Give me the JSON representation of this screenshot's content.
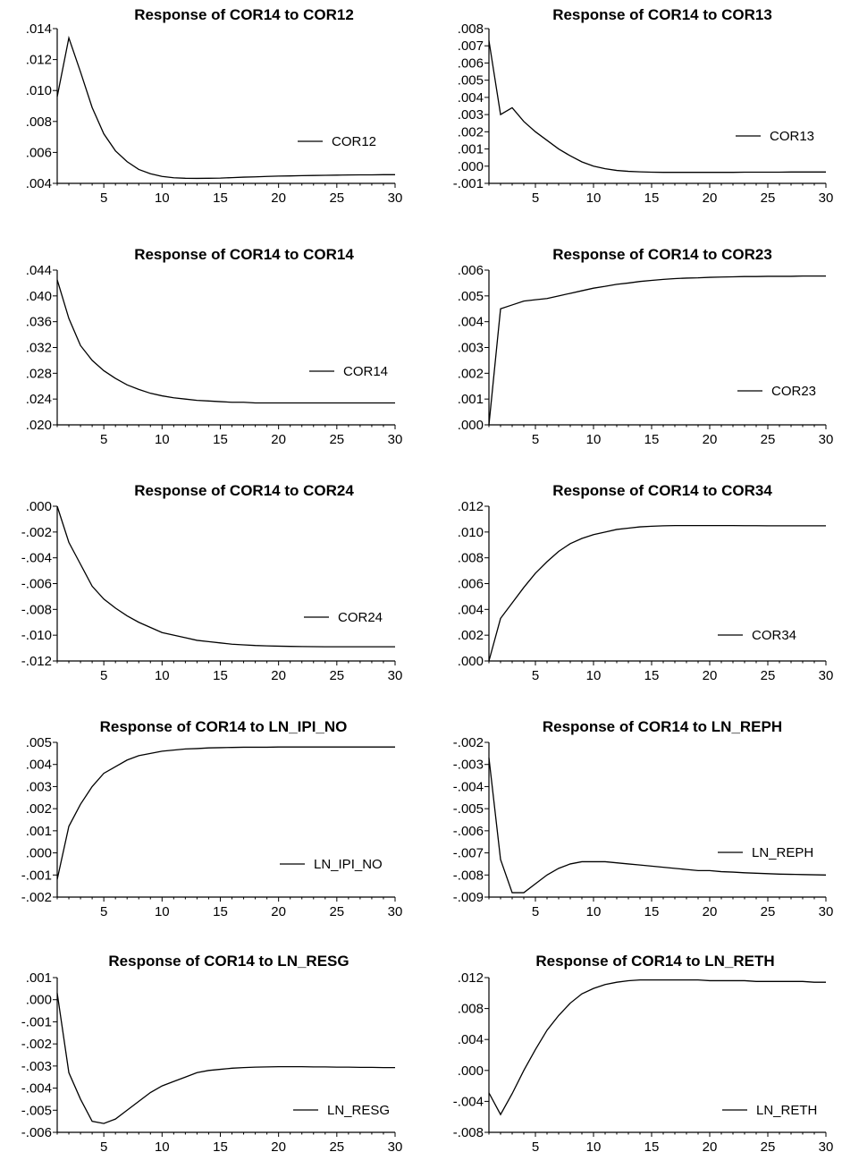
{
  "chart_data": [
    {
      "type": "line",
      "title": "Response of COR14 to COR12",
      "x": [
        1,
        2,
        3,
        4,
        5,
        6,
        7,
        8,
        9,
        10,
        11,
        12,
        13,
        14,
        15,
        16,
        17,
        18,
        19,
        20,
        21,
        22,
        23,
        24,
        25,
        26,
        27,
        28,
        29,
        30
      ],
      "xticks": [
        5,
        10,
        15,
        20,
        25,
        30
      ],
      "xlim": [
        1,
        30
      ],
      "ylim": [
        0.004,
        0.014
      ],
      "yticks": [
        {
          "v": 0.004,
          "label": ".004"
        },
        {
          "v": 0.006,
          "label": ".006"
        },
        {
          "v": 0.008,
          "label": ".008"
        },
        {
          "v": 0.01,
          "label": ".010"
        },
        {
          "v": 0.012,
          "label": ".012"
        },
        {
          "v": 0.014,
          "label": ".014"
        }
      ],
      "series": [
        {
          "name": "COR12",
          "values": [
            0.0096,
            0.0134,
            0.0112,
            0.0089,
            0.0072,
            0.0061,
            0.0054,
            0.0049,
            0.00462,
            0.00445,
            0.00436,
            0.00433,
            0.00432,
            0.00433,
            0.00434,
            0.00437,
            0.0044,
            0.00442,
            0.00445,
            0.00447,
            0.00448,
            0.0045,
            0.00451,
            0.00452,
            0.00453,
            0.00454,
            0.00455,
            0.00455,
            0.00456,
            0.00456
          ]
        }
      ]
    },
    {
      "type": "line",
      "title": "Response of COR14 to COR13",
      "x": [
        1,
        2,
        3,
        4,
        5,
        6,
        7,
        8,
        9,
        10,
        11,
        12,
        13,
        14,
        15,
        16,
        17,
        18,
        19,
        20,
        21,
        22,
        23,
        24,
        25,
        26,
        27,
        28,
        29,
        30
      ],
      "xticks": [
        5,
        10,
        15,
        20,
        25,
        30
      ],
      "xlim": [
        1,
        30
      ],
      "ylim": [
        -0.001,
        0.008
      ],
      "yticks": [
        {
          "v": -0.001,
          "label": "-.001"
        },
        {
          "v": 0.0,
          "label": ".000"
        },
        {
          "v": 0.001,
          "label": ".001"
        },
        {
          "v": 0.002,
          "label": ".002"
        },
        {
          "v": 0.003,
          "label": ".003"
        },
        {
          "v": 0.004,
          "label": ".004"
        },
        {
          "v": 0.005,
          "label": ".005"
        },
        {
          "v": 0.006,
          "label": ".006"
        },
        {
          "v": 0.007,
          "label": ".007"
        },
        {
          "v": 0.008,
          "label": ".008"
        }
      ],
      "series": [
        {
          "name": "COR13",
          "values": [
            0.0073,
            0.003,
            0.0034,
            0.0026,
            0.002,
            0.0015,
            0.001,
            0.0006,
            0.00025,
            0.0,
            -0.00015,
            -0.00025,
            -0.0003,
            -0.00033,
            -0.00035,
            -0.00036,
            -0.00036,
            -0.00036,
            -0.00036,
            -0.00036,
            -0.00036,
            -0.00036,
            -0.00035,
            -0.00035,
            -0.00035,
            -0.00035,
            -0.00034,
            -0.00034,
            -0.00034,
            -0.00034
          ]
        }
      ]
    },
    {
      "type": "line",
      "title": "Response of COR14 to COR14",
      "x": [
        1,
        2,
        3,
        4,
        5,
        6,
        7,
        8,
        9,
        10,
        11,
        12,
        13,
        14,
        15,
        16,
        17,
        18,
        19,
        20,
        21,
        22,
        23,
        24,
        25,
        26,
        27,
        28,
        29,
        30
      ],
      "xticks": [
        5,
        10,
        15,
        20,
        25,
        30
      ],
      "xlim": [
        1,
        30
      ],
      "ylim": [
        0.02,
        0.044
      ],
      "yticks": [
        {
          "v": 0.02,
          "label": ".020"
        },
        {
          "v": 0.024,
          "label": ".024"
        },
        {
          "v": 0.028,
          "label": ".028"
        },
        {
          "v": 0.032,
          "label": ".032"
        },
        {
          "v": 0.036,
          "label": ".036"
        },
        {
          "v": 0.04,
          "label": ".040"
        },
        {
          "v": 0.044,
          "label": ".044"
        }
      ],
      "series": [
        {
          "name": "COR14",
          "values": [
            0.0425,
            0.0365,
            0.0323,
            0.03,
            0.0284,
            0.0272,
            0.0262,
            0.0255,
            0.0249,
            0.0245,
            0.0242,
            0.024,
            0.0238,
            0.0237,
            0.0236,
            0.0235,
            0.0235,
            0.0234,
            0.0234,
            0.0234,
            0.0234,
            0.0234,
            0.0234,
            0.0234,
            0.0234,
            0.0234,
            0.0234,
            0.0234,
            0.0234,
            0.0234
          ]
        }
      ]
    },
    {
      "type": "line",
      "title": "Response of COR14 to COR23",
      "x": [
        1,
        2,
        3,
        4,
        5,
        6,
        7,
        8,
        9,
        10,
        11,
        12,
        13,
        14,
        15,
        16,
        17,
        18,
        19,
        20,
        21,
        22,
        23,
        24,
        25,
        26,
        27,
        28,
        29,
        30
      ],
      "xticks": [
        5,
        10,
        15,
        20,
        25,
        30
      ],
      "xlim": [
        1,
        30
      ],
      "ylim": [
        0.0,
        0.006
      ],
      "yticks": [
        {
          "v": 0.0,
          "label": ".000"
        },
        {
          "v": 0.001,
          "label": ".001"
        },
        {
          "v": 0.002,
          "label": ".002"
        },
        {
          "v": 0.003,
          "label": ".003"
        },
        {
          "v": 0.004,
          "label": ".004"
        },
        {
          "v": 0.005,
          "label": ".005"
        },
        {
          "v": 0.006,
          "label": ".006"
        }
      ],
      "series": [
        {
          "name": "COR23",
          "values": [
            0.0,
            0.0045,
            0.00465,
            0.0048,
            0.00485,
            0.0049,
            0.005,
            0.0051,
            0.0052,
            0.0053,
            0.00537,
            0.00545,
            0.0055,
            0.00556,
            0.0056,
            0.00564,
            0.00567,
            0.00569,
            0.0057,
            0.00572,
            0.00573,
            0.00574,
            0.00575,
            0.00575,
            0.00576,
            0.00576,
            0.00576,
            0.00577,
            0.00577,
            0.00577
          ]
        }
      ]
    },
    {
      "type": "line",
      "title": "Response of COR14 to COR24",
      "x": [
        1,
        2,
        3,
        4,
        5,
        6,
        7,
        8,
        9,
        10,
        11,
        12,
        13,
        14,
        15,
        16,
        17,
        18,
        19,
        20,
        21,
        22,
        23,
        24,
        25,
        26,
        27,
        28,
        29,
        30
      ],
      "xticks": [
        5,
        10,
        15,
        20,
        25,
        30
      ],
      "xlim": [
        1,
        30
      ],
      "ylim": [
        -0.012,
        0.0
      ],
      "yticks": [
        {
          "v": -0.012,
          "label": "-.012"
        },
        {
          "v": -0.01,
          "label": "-.010"
        },
        {
          "v": -0.008,
          "label": "-.008"
        },
        {
          "v": -0.006,
          "label": "-.006"
        },
        {
          "v": -0.004,
          "label": "-.004"
        },
        {
          "v": -0.002,
          "label": "-.002"
        },
        {
          "v": 0.0,
          "label": ".000"
        }
      ],
      "series": [
        {
          "name": "COR24",
          "values": [
            0.0,
            -0.0028,
            -0.0045,
            -0.0062,
            -0.0072,
            -0.0079,
            -0.0085,
            -0.009,
            -0.0094,
            -0.0098,
            -0.01,
            -0.0102,
            -0.0104,
            -0.0105,
            -0.0106,
            -0.0107,
            -0.01075,
            -0.0108,
            -0.01083,
            -0.01085,
            -0.01087,
            -0.01088,
            -0.01089,
            -0.0109,
            -0.0109,
            -0.0109,
            -0.0109,
            -0.0109,
            -0.0109,
            -0.0109
          ]
        }
      ]
    },
    {
      "type": "line",
      "title": "Response of COR14 to COR34",
      "x": [
        1,
        2,
        3,
        4,
        5,
        6,
        7,
        8,
        9,
        10,
        11,
        12,
        13,
        14,
        15,
        16,
        17,
        18,
        19,
        20,
        21,
        22,
        23,
        24,
        25,
        26,
        27,
        28,
        29,
        30
      ],
      "xticks": [
        5,
        10,
        15,
        20,
        25,
        30
      ],
      "xlim": [
        1,
        30
      ],
      "ylim": [
        0.0,
        0.012
      ],
      "yticks": [
        {
          "v": 0.0,
          "label": ".000"
        },
        {
          "v": 0.002,
          "label": ".002"
        },
        {
          "v": 0.004,
          "label": ".004"
        },
        {
          "v": 0.006,
          "label": ".006"
        },
        {
          "v": 0.008,
          "label": ".008"
        },
        {
          "v": 0.01,
          "label": ".010"
        },
        {
          "v": 0.012,
          "label": ".012"
        }
      ],
      "series": [
        {
          "name": "COR34",
          "values": [
            0.0,
            0.0033,
            0.0045,
            0.0057,
            0.0068,
            0.0077,
            0.0085,
            0.0091,
            0.0095,
            0.0098,
            0.01,
            0.0102,
            0.0103,
            0.0104,
            0.01045,
            0.01048,
            0.0105,
            0.0105,
            0.0105,
            0.0105,
            0.0105,
            0.0105,
            0.01049,
            0.01049,
            0.01048,
            0.01048,
            0.01048,
            0.01048,
            0.01048,
            0.01048
          ]
        }
      ]
    },
    {
      "type": "line",
      "title": "Response of COR14 to LN_IPI_NO",
      "x": [
        1,
        2,
        3,
        4,
        5,
        6,
        7,
        8,
        9,
        10,
        11,
        12,
        13,
        14,
        15,
        16,
        17,
        18,
        19,
        20,
        21,
        22,
        23,
        24,
        25,
        26,
        27,
        28,
        29,
        30
      ],
      "xticks": [
        5,
        10,
        15,
        20,
        25,
        30
      ],
      "xlim": [
        1,
        30
      ],
      "ylim": [
        -0.002,
        0.005
      ],
      "yticks": [
        {
          "v": -0.002,
          "label": "-.002"
        },
        {
          "v": -0.001,
          "label": "-.001"
        },
        {
          "v": 0.0,
          "label": ".000"
        },
        {
          "v": 0.001,
          "label": ".001"
        },
        {
          "v": 0.002,
          "label": ".002"
        },
        {
          "v": 0.003,
          "label": ".003"
        },
        {
          "v": 0.004,
          "label": ".004"
        },
        {
          "v": 0.005,
          "label": ".005"
        }
      ],
      "series": [
        {
          "name": "LN_IPI_NO",
          "values": [
            -0.0012,
            0.0012,
            0.0022,
            0.003,
            0.0036,
            0.0039,
            0.0042,
            0.0044,
            0.0045,
            0.0046,
            0.00465,
            0.0047,
            0.00472,
            0.00475,
            0.00476,
            0.00477,
            0.00478,
            0.00478,
            0.00478,
            0.00479,
            0.00479,
            0.00479,
            0.00479,
            0.00479,
            0.00479,
            0.00479,
            0.00479,
            0.00479,
            0.00479,
            0.00479
          ]
        }
      ]
    },
    {
      "type": "line",
      "title": "Response of COR14 to LN_REPH",
      "x": [
        1,
        2,
        3,
        4,
        5,
        6,
        7,
        8,
        9,
        10,
        11,
        12,
        13,
        14,
        15,
        16,
        17,
        18,
        19,
        20,
        21,
        22,
        23,
        24,
        25,
        26,
        27,
        28,
        29,
        30
      ],
      "xticks": [
        5,
        10,
        15,
        20,
        25,
        30
      ],
      "xlim": [
        1,
        30
      ],
      "ylim": [
        -0.009,
        -0.002
      ],
      "yticks": [
        {
          "v": -0.009,
          "label": "-.009"
        },
        {
          "v": -0.008,
          "label": "-.008"
        },
        {
          "v": -0.007,
          "label": "-.007"
        },
        {
          "v": -0.006,
          "label": "-.006"
        },
        {
          "v": -0.005,
          "label": "-.005"
        },
        {
          "v": -0.004,
          "label": "-.004"
        },
        {
          "v": -0.003,
          "label": "-.003"
        },
        {
          "v": -0.002,
          "label": "-.002"
        }
      ],
      "series": [
        {
          "name": "LN_REPH",
          "values": [
            -0.0027,
            -0.0073,
            -0.0088,
            -0.0088,
            -0.0084,
            -0.008,
            -0.0077,
            -0.0075,
            -0.0074,
            -0.0074,
            -0.0074,
            -0.00745,
            -0.0075,
            -0.00755,
            -0.0076,
            -0.00765,
            -0.0077,
            -0.00775,
            -0.0078,
            -0.0078,
            -0.00785,
            -0.00787,
            -0.0079,
            -0.00792,
            -0.00794,
            -0.00796,
            -0.00797,
            -0.00798,
            -0.00799,
            -0.008
          ]
        }
      ]
    },
    {
      "type": "line",
      "title": "Response of COR14 to LN_RESG",
      "x": [
        1,
        2,
        3,
        4,
        5,
        6,
        7,
        8,
        9,
        10,
        11,
        12,
        13,
        14,
        15,
        16,
        17,
        18,
        19,
        20,
        21,
        22,
        23,
        24,
        25,
        26,
        27,
        28,
        29,
        30
      ],
      "xticks": [
        5,
        10,
        15,
        20,
        25,
        30
      ],
      "xlim": [
        1,
        30
      ],
      "ylim": [
        -0.006,
        0.001
      ],
      "yticks": [
        {
          "v": -0.006,
          "label": "-.006"
        },
        {
          "v": -0.005,
          "label": "-.005"
        },
        {
          "v": -0.004,
          "label": "-.004"
        },
        {
          "v": -0.003,
          "label": "-.003"
        },
        {
          "v": -0.002,
          "label": "-.002"
        },
        {
          "v": -0.001,
          "label": "-.001"
        },
        {
          "v": 0.0,
          "label": ".000"
        },
        {
          "v": 0.001,
          "label": ".001"
        }
      ],
      "series": [
        {
          "name": "LN_RESG",
          "values": [
            0.0003,
            -0.0033,
            -0.0045,
            -0.0055,
            -0.0056,
            -0.0054,
            -0.005,
            -0.0046,
            -0.0042,
            -0.0039,
            -0.0037,
            -0.0035,
            -0.0033,
            -0.0032,
            -0.00315,
            -0.0031,
            -0.00307,
            -0.00305,
            -0.00304,
            -0.00303,
            -0.00303,
            -0.00303,
            -0.00304,
            -0.00304,
            -0.00305,
            -0.00305,
            -0.00306,
            -0.00306,
            -0.00307,
            -0.00307
          ]
        }
      ]
    },
    {
      "type": "line",
      "title": "Response of COR14  to LN_RETH",
      "x": [
        1,
        2,
        3,
        4,
        5,
        6,
        7,
        8,
        9,
        10,
        11,
        12,
        13,
        14,
        15,
        16,
        17,
        18,
        19,
        20,
        21,
        22,
        23,
        24,
        25,
        26,
        27,
        28,
        29,
        30
      ],
      "xticks": [
        5,
        10,
        15,
        20,
        25,
        30
      ],
      "xlim": [
        1,
        30
      ],
      "ylim": [
        -0.008,
        0.012
      ],
      "yticks": [
        {
          "v": -0.008,
          "label": "-.008"
        },
        {
          "v": -0.004,
          "label": "-.004"
        },
        {
          "v": 0.0,
          "label": ".000"
        },
        {
          "v": 0.004,
          "label": ".004"
        },
        {
          "v": 0.008,
          "label": ".008"
        },
        {
          "v": 0.012,
          "label": ".012"
        }
      ],
      "series": [
        {
          "name": "LN_RETH",
          "values": [
            -0.0029,
            -0.0057,
            -0.003,
            0.0,
            0.0027,
            0.0052,
            0.0071,
            0.0087,
            0.0099,
            0.0106,
            0.0111,
            0.0114,
            0.0116,
            0.0117,
            0.0117,
            0.0117,
            0.0117,
            0.0117,
            0.0117,
            0.0116,
            0.0116,
            0.0116,
            0.0116,
            0.0115,
            0.0115,
            0.0115,
            0.0115,
            0.0115,
            0.0114,
            0.0114
          ]
        }
      ]
    }
  ]
}
